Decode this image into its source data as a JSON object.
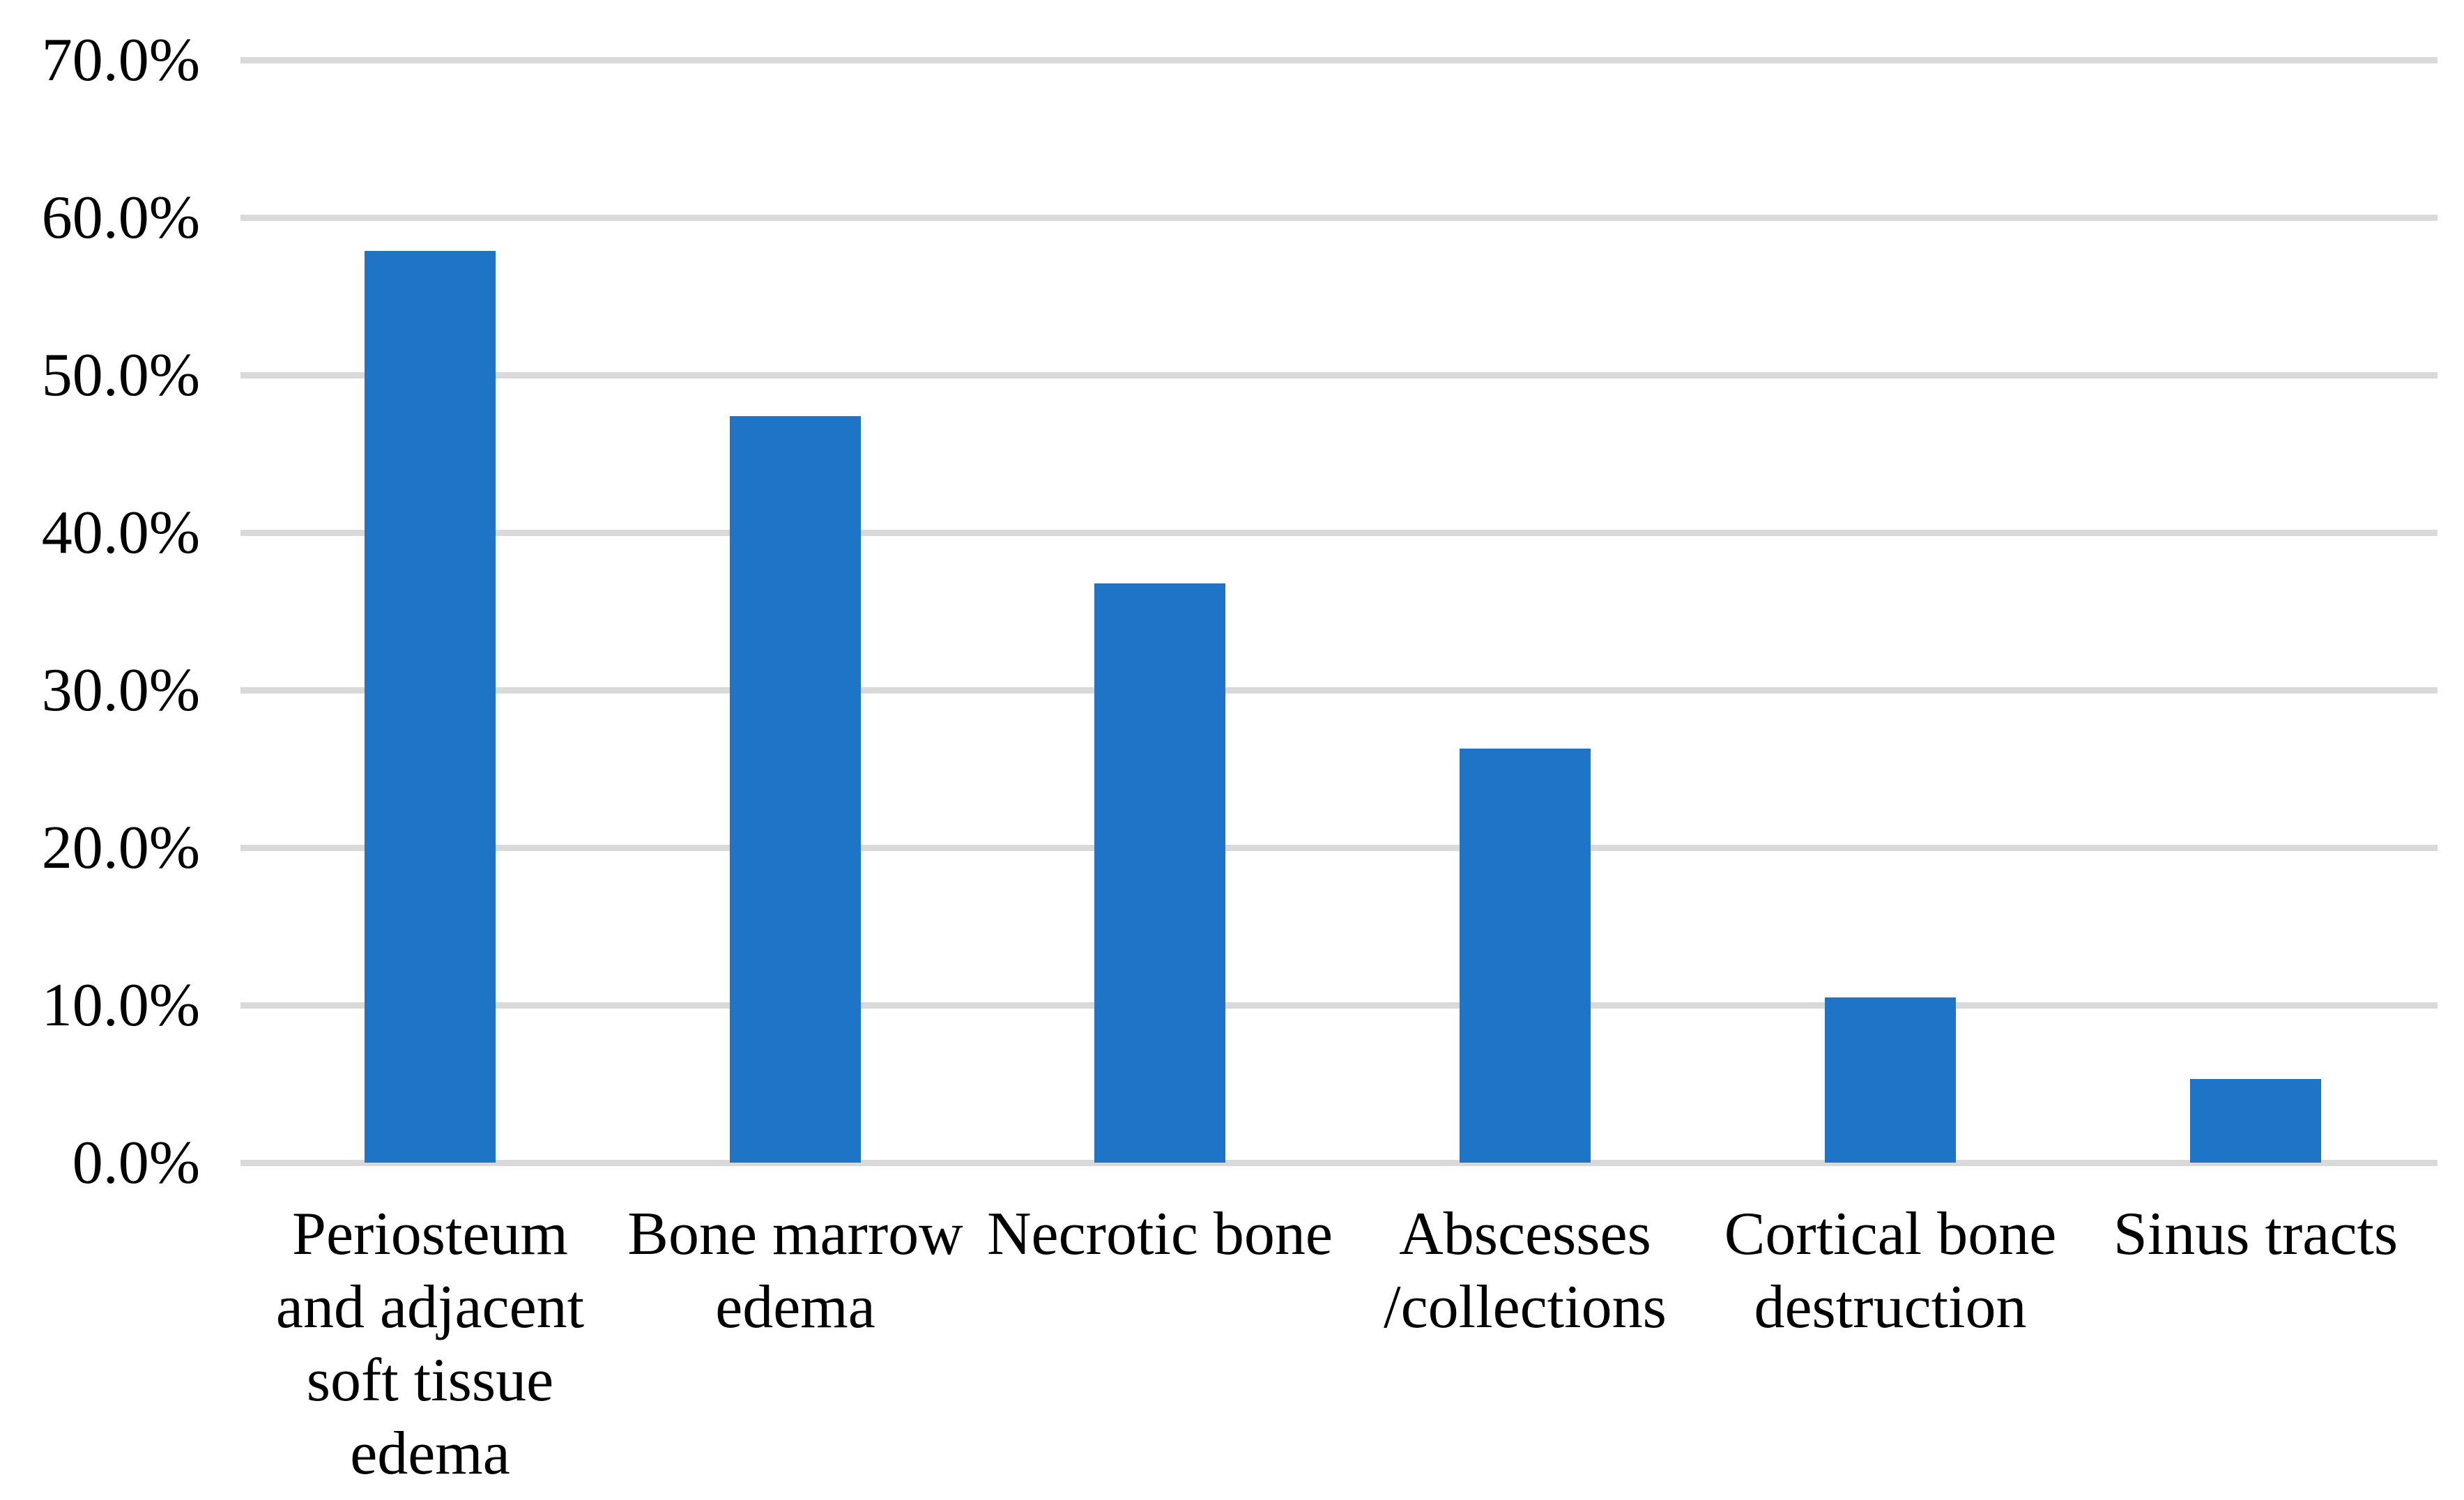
{
  "chart_data": {
    "type": "bar",
    "title": "",
    "xlabel": "",
    "ylabel": "",
    "categories": [
      "Periosteum\nand adjacent\nsoft tissue\nedema",
      "Bone marrow\nedema",
      "Necrotic bone",
      "Abscesses\n/collections",
      "Cortical bone\ndestruction",
      "Sinus tracts"
    ],
    "values": [
      57.9,
      47.4,
      36.8,
      26.3,
      10.5,
      5.3
    ],
    "value_unit": "%",
    "ylim": [
      0,
      70
    ],
    "ytick_step": 10,
    "ytick_labels": [
      "0.0%",
      "10.0%",
      "20.0%",
      "30.0%",
      "40.0%",
      "50.0%",
      "60.0%",
      "70.0%"
    ],
    "grid": "horizontal",
    "legend_position": "none",
    "data_labels_visible": false,
    "colors": {
      "bar_fill": "#1E74C6",
      "gridline": "#D9D9D9",
      "text": "#000000",
      "background": "#ffffff"
    }
  }
}
